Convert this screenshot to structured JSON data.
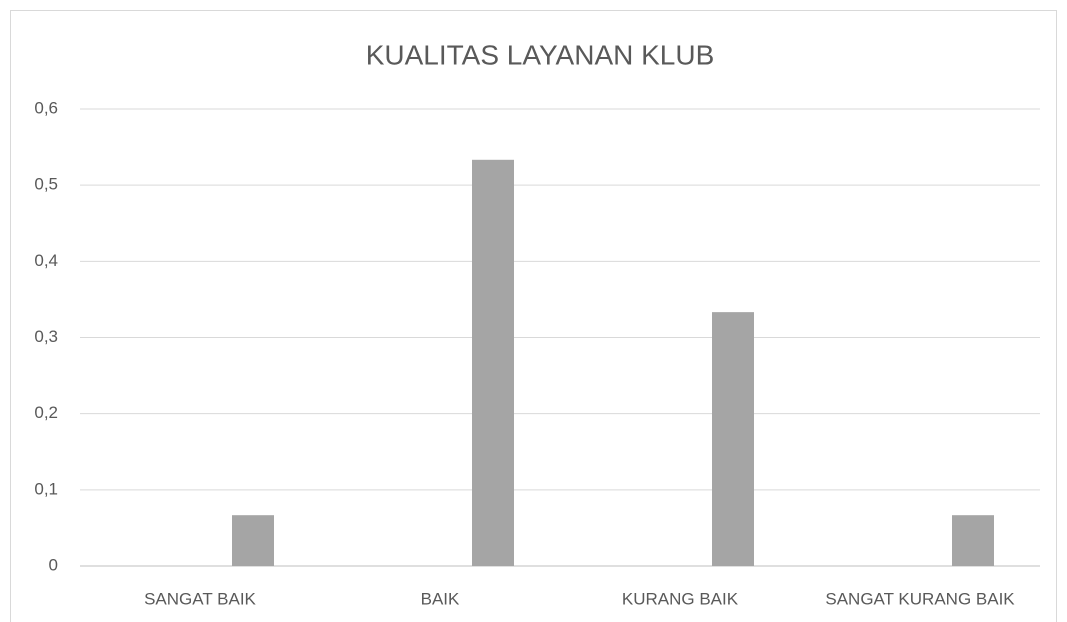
{
  "chart_data": {
    "type": "bar",
    "title": "KUALITAS LAYANAN KLUB",
    "categories": [
      "SANGAT BAIK",
      "BAIK",
      "KURANG BAIK",
      "SANGAT KURANG BAIK"
    ],
    "values": [
      0.0667,
      0.5333,
      0.3333,
      0.0667
    ],
    "color": "#a5a5a5",
    "ylim": [
      0,
      0.6
    ],
    "yticks": [
      0,
      {
        "value": 0.1,
        "label": "0,1"
      },
      {
        "value": 0.2,
        "label": "0,2"
      },
      {
        "value": 0.3,
        "label": "0,3"
      },
      {
        "value": 0.4,
        "label": "0,4"
      },
      {
        "value": 0.5,
        "label": "0,5"
      },
      {
        "value": 0.6,
        "label": "0,6"
      }
    ],
    "grid": true
  }
}
